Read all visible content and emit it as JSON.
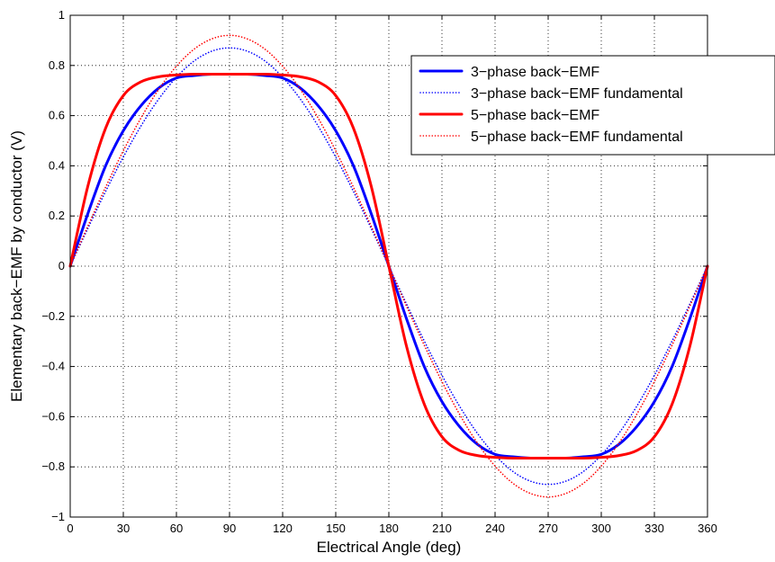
{
  "chart_data": {
    "type": "line",
    "title": "",
    "xlabel": "Electrical Angle (deg)",
    "ylabel": "Elementary back−EMF by conductor (V)",
    "xlim": [
      0,
      360
    ],
    "ylim": [
      -1,
      1
    ],
    "xticks": [
      0,
      30,
      60,
      90,
      120,
      150,
      180,
      210,
      240,
      270,
      300,
      330,
      360
    ],
    "yticks": [
      -1,
      -0.8,
      -0.6,
      -0.4,
      -0.2,
      0,
      0.2,
      0.4,
      0.6,
      0.8,
      1
    ],
    "xtick_labels": [
      "0",
      "30",
      "60",
      "90",
      "120",
      "150",
      "180",
      "210",
      "240",
      "270",
      "300",
      "330",
      "360"
    ],
    "ytick_labels": [
      "−1",
      "−0.8",
      "−0.6",
      "−0.4",
      "−0.2",
      "0",
      "0.2",
      "0.4",
      "0.6",
      "0.8",
      "1"
    ],
    "grid": true,
    "legend_position": "top-right",
    "x": [
      0,
      10,
      20,
      30,
      40,
      50,
      60,
      70,
      80,
      90,
      100,
      110,
      120,
      130,
      140,
      150,
      160,
      170,
      180,
      190,
      200,
      210,
      220,
      230,
      240,
      250,
      260,
      270,
      280,
      290,
      300,
      310,
      320,
      330,
      340,
      350,
      360
    ],
    "series": [
      {
        "name": "3−phase back−EMF",
        "color": "#0000ff",
        "style": "solid",
        "values": [
          0,
          0.21,
          0.4,
          0.54,
          0.64,
          0.71,
          0.75,
          0.76,
          0.765,
          0.765,
          0.765,
          0.76,
          0.75,
          0.71,
          0.64,
          0.54,
          0.4,
          0.21,
          0,
          -0.21,
          -0.4,
          -0.54,
          -0.64,
          -0.71,
          -0.75,
          -0.76,
          -0.765,
          -0.765,
          -0.765,
          -0.76,
          -0.75,
          -0.71,
          -0.64,
          -0.54,
          -0.4,
          -0.21,
          0
        ]
      },
      {
        "name": "3−phase back−EMF fundamental",
        "color": "#0000ff",
        "style": "dotted",
        "values": [
          0,
          0.151,
          0.298,
          0.435,
          0.559,
          0.666,
          0.753,
          0.818,
          0.857,
          0.87,
          0.857,
          0.818,
          0.753,
          0.666,
          0.559,
          0.435,
          0.298,
          0.151,
          0,
          -0.151,
          -0.298,
          -0.435,
          -0.559,
          -0.666,
          -0.753,
          -0.818,
          -0.857,
          -0.87,
          -0.857,
          -0.818,
          -0.753,
          -0.666,
          -0.559,
          -0.435,
          -0.298,
          -0.151,
          0
        ]
      },
      {
        "name": "5−phase back−EMF",
        "color": "#ff0000",
        "style": "solid",
        "values": [
          0,
          0.32,
          0.55,
          0.68,
          0.735,
          0.755,
          0.762,
          0.765,
          0.765,
          0.765,
          0.765,
          0.765,
          0.762,
          0.755,
          0.735,
          0.68,
          0.55,
          0.32,
          0,
          -0.32,
          -0.55,
          -0.68,
          -0.735,
          -0.755,
          -0.762,
          -0.765,
          -0.765,
          -0.765,
          -0.765,
          -0.765,
          -0.762,
          -0.755,
          -0.735,
          -0.68,
          -0.55,
          -0.32,
          0
        ]
      },
      {
        "name": "5−phase back−EMF fundamental",
        "color": "#ff0000",
        "style": "dotted",
        "values": [
          0,
          0.16,
          0.315,
          0.46,
          0.591,
          0.705,
          0.797,
          0.865,
          0.906,
          0.92,
          0.906,
          0.865,
          0.797,
          0.705,
          0.591,
          0.46,
          0.315,
          0.16,
          0,
          -0.16,
          -0.315,
          -0.46,
          -0.591,
          -0.705,
          -0.797,
          -0.865,
          -0.906,
          -0.92,
          -0.906,
          -0.865,
          -0.797,
          -0.705,
          -0.591,
          -0.46,
          -0.315,
          -0.16,
          0
        ]
      }
    ]
  }
}
